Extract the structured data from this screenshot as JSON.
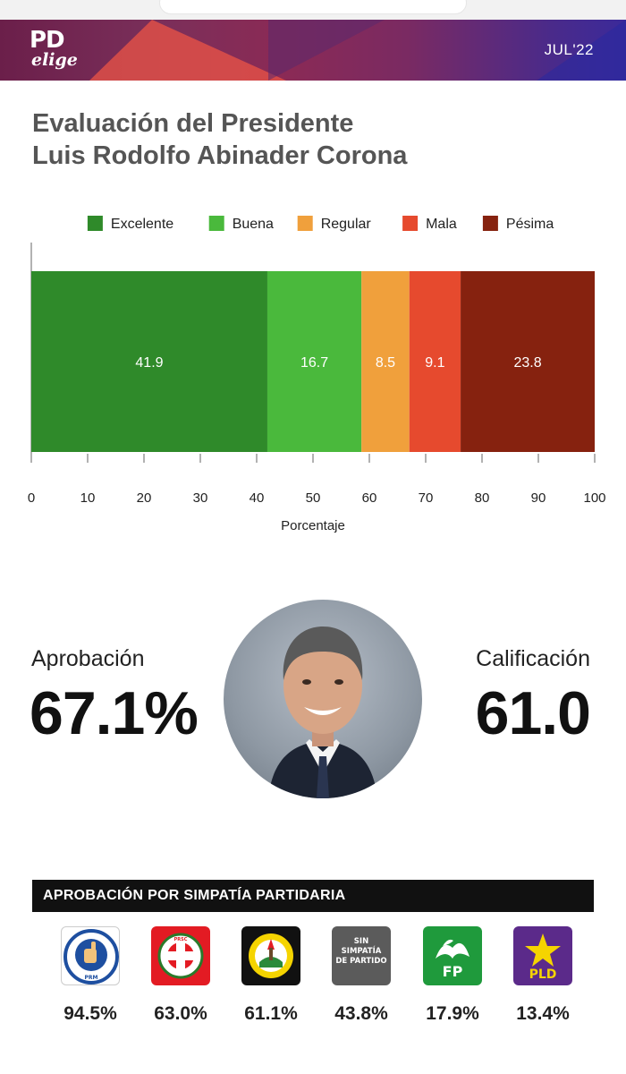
{
  "header": {
    "logo_top": "PD",
    "logo_bottom": "elige",
    "date": "JUL'22"
  },
  "title": {
    "line1": "Evaluación del Presidente",
    "line2": "Luis Rodolfo Abinader Corona"
  },
  "chart_data": {
    "type": "bar",
    "orientation": "horizontal-stacked",
    "series": [
      {
        "name": "Excelente",
        "values": [
          41.9
        ],
        "color": "#2f8a2a"
      },
      {
        "name": "Buena",
        "values": [
          16.7
        ],
        "color": "#4ab93c"
      },
      {
        "name": "Regular",
        "values": [
          8.5
        ],
        "color": "#f0a03c"
      },
      {
        "name": "Mala",
        "values": [
          9.1
        ],
        "color": "#e64a2e"
      },
      {
        "name": "Pésima",
        "values": [
          23.8
        ],
        "color": "#86220f"
      }
    ],
    "xlabel": "Porcentaje",
    "xlim": [
      0,
      100
    ],
    "xticks": [
      "0",
      "10",
      "20",
      "30",
      "40",
      "50",
      "60",
      "70",
      "80",
      "90",
      "100"
    ],
    "legend": "top",
    "grid": false
  },
  "approval": {
    "label": "Aprobación",
    "value": "67.1%"
  },
  "rating": {
    "label": "Calificación",
    "value": "61.0"
  },
  "parties": {
    "header": "APROBACIÓN POR SIMPATÍA PARTIDARIA",
    "items": [
      {
        "name": "PRM",
        "value": "94.5%",
        "icon": "prm-logo-icon",
        "logo_text": "PRM"
      },
      {
        "name": "PRSC",
        "value": "63.0%",
        "icon": "prsc-logo-icon",
        "logo_text": "PRSC"
      },
      {
        "name": "PRD",
        "value": "61.1%",
        "icon": "prd-logo-icon",
        "logo_text": ""
      },
      {
        "name": "Sin simpatía de partido",
        "value": "43.8%",
        "icon": "no-party-icon",
        "logo_text": "SIN SIMPATÍA DE PARTIDO"
      },
      {
        "name": "FP",
        "value": "17.9%",
        "icon": "fp-logo-icon",
        "logo_text": "FP"
      },
      {
        "name": "PLD",
        "value": "13.4%",
        "icon": "pld-logo-icon",
        "logo_text": "PLD"
      }
    ]
  }
}
